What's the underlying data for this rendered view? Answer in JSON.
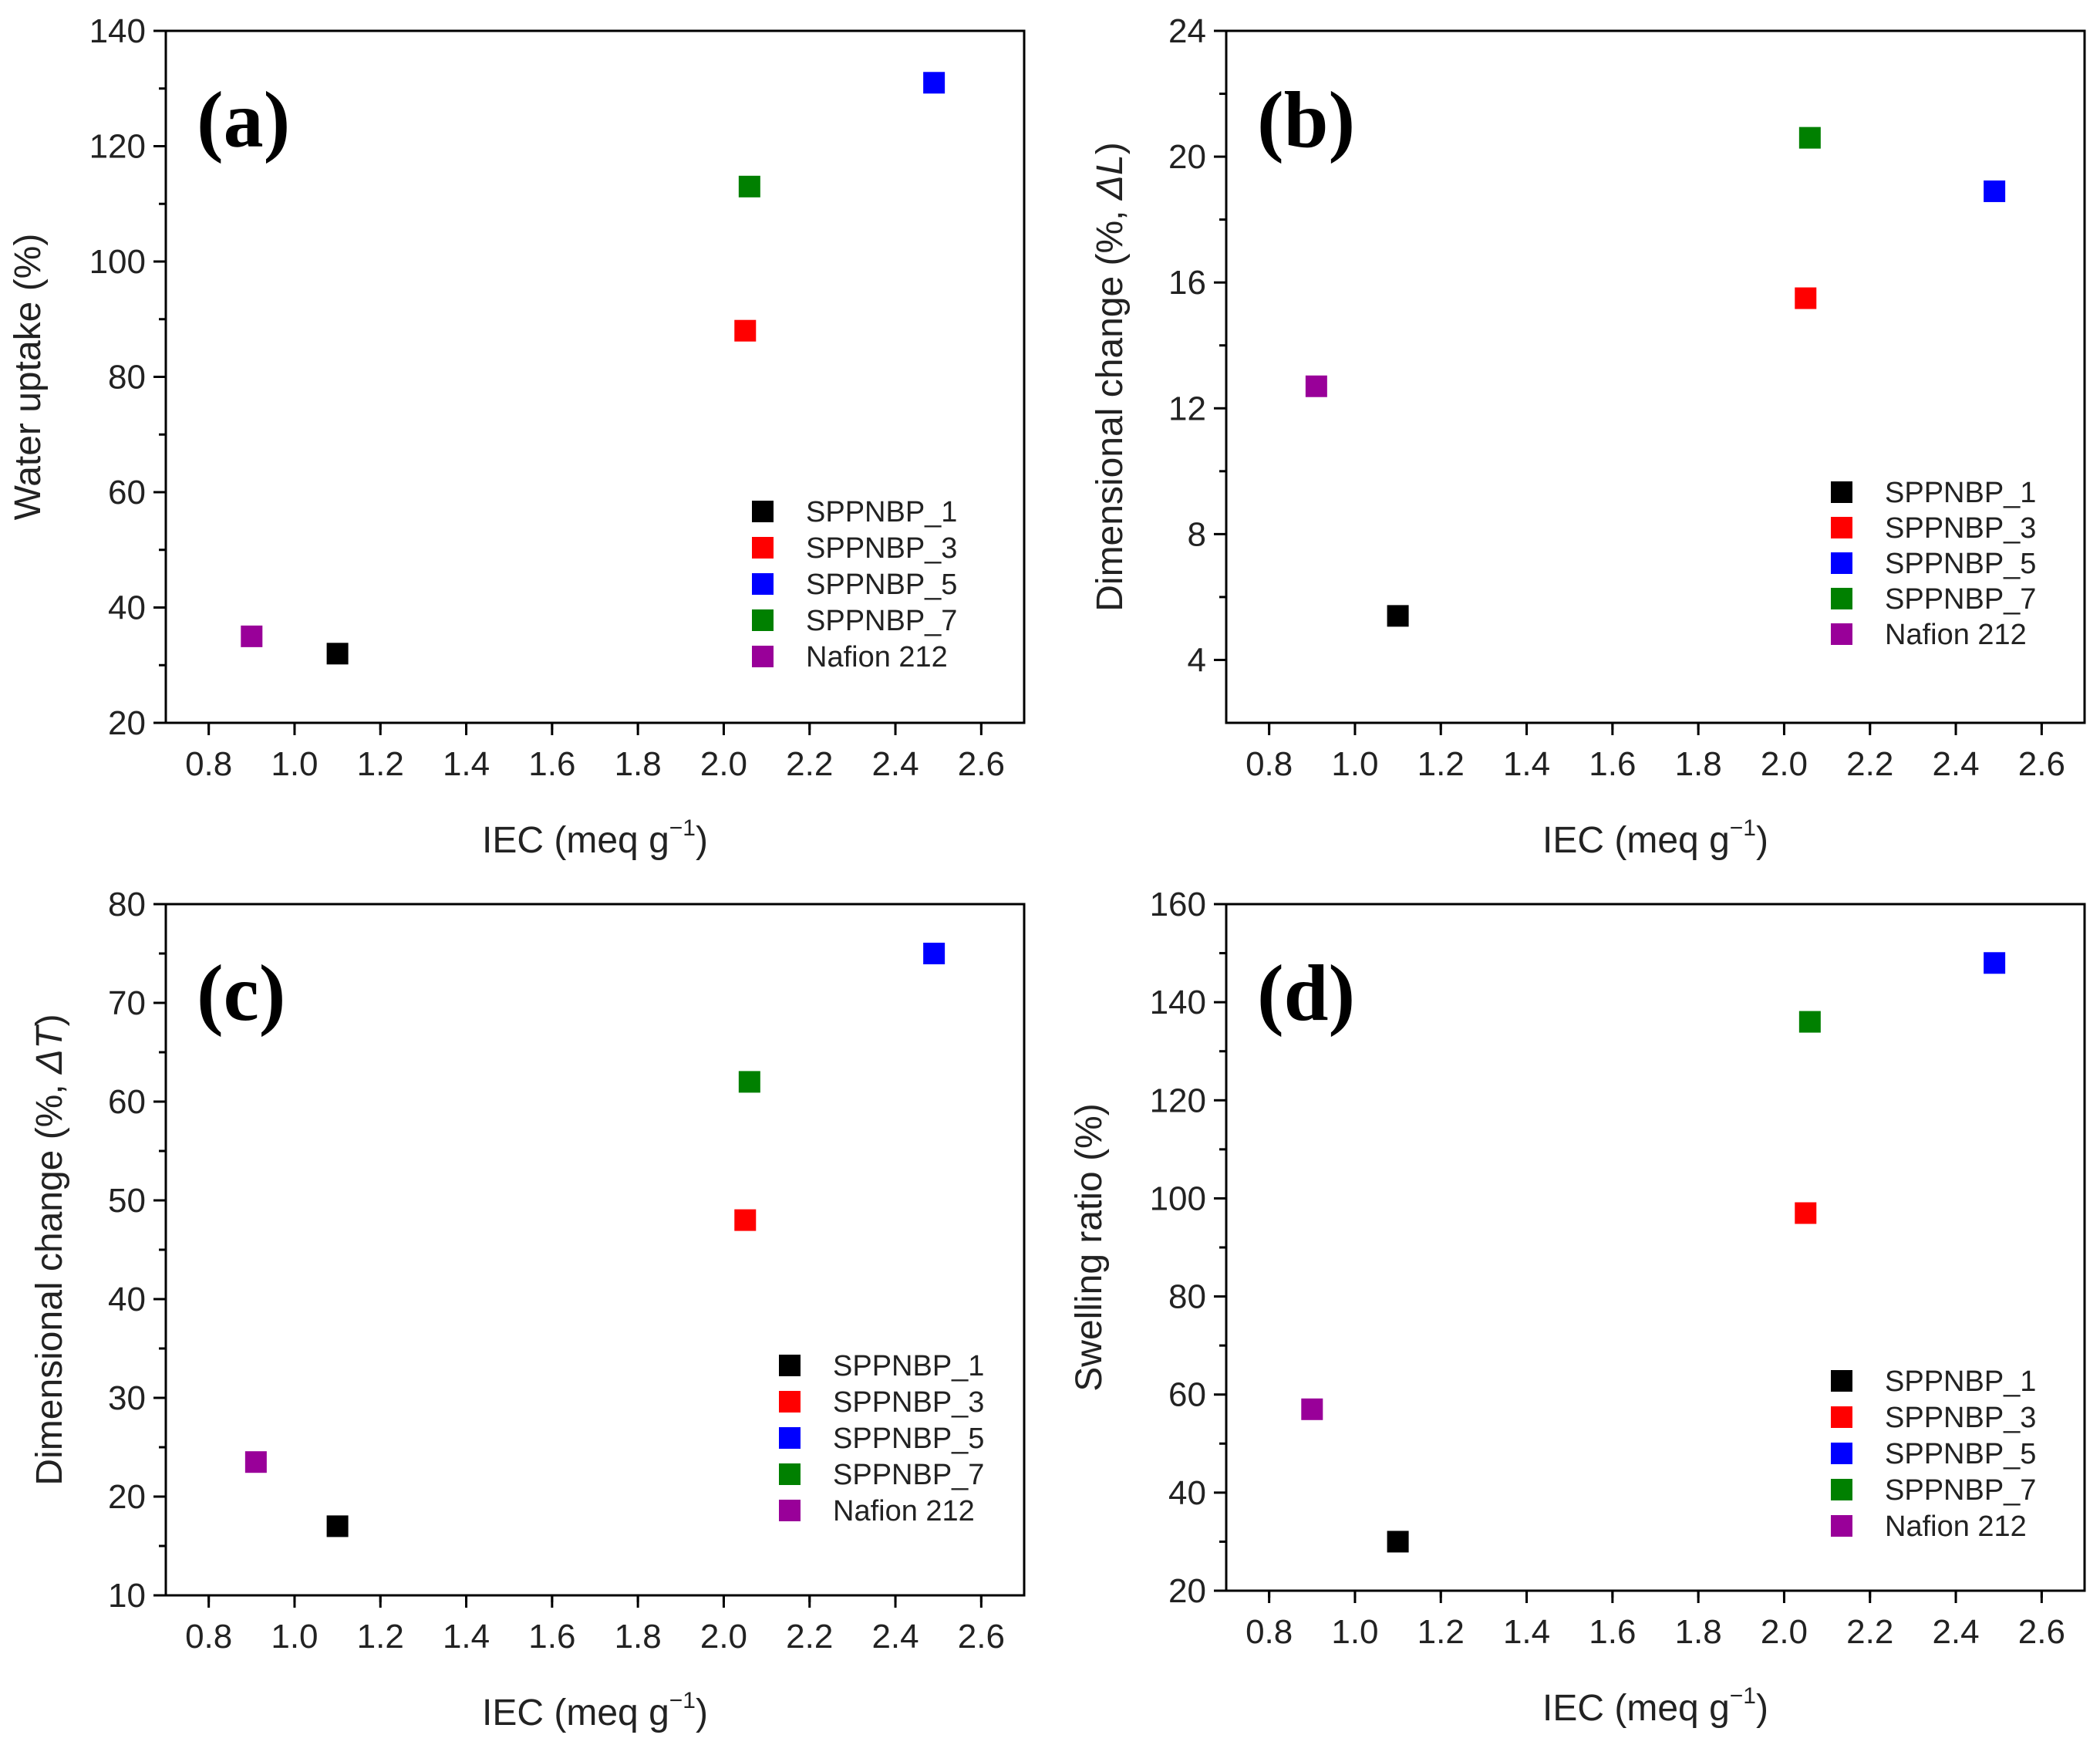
{
  "chart_data": [
    {
      "type": "scatter",
      "panel_label": "(a)",
      "xlabel": "IEC (meq g",
      "xlabel_sup": "−1",
      "xlabel_close": ")",
      "ylabel": "Water uptake (%)",
      "xlim": [
        0.7,
        2.7
      ],
      "ylim": [
        20,
        140
      ],
      "xticks": [
        "0.8",
        "1.0",
        "1.2",
        "1.4",
        "1.6",
        "1.8",
        "2.0",
        "2.2",
        "2.4",
        "2.6"
      ],
      "yticks": [
        "20",
        "40",
        "60",
        "80",
        "100",
        "120",
        "140"
      ],
      "legend_position": "bottom-right",
      "series": [
        {
          "name": "SPPNBP_1",
          "color": "#000000",
          "x": 1.1,
          "y": 32
        },
        {
          "name": "SPPNBP_3",
          "color": "#ff0000",
          "x": 2.05,
          "y": 88
        },
        {
          "name": "SPPNBP_5",
          "color": "#0000ff",
          "x": 2.49,
          "y": 131
        },
        {
          "name": "SPPNBP_7",
          "color": "#008000",
          "x": 2.06,
          "y": 113
        },
        {
          "name": "Nafion 212",
          "color": "#990099",
          "x": 0.9,
          "y": 35
        }
      ]
    },
    {
      "type": "scatter",
      "panel_label": "(b)",
      "xlabel": "IEC (meq g",
      "xlabel_sup": "−1",
      "xlabel_close": ")",
      "ylabel": "Dimensional change (%, ",
      "ylabel_italic": "ΔL",
      "ylabel_close": ")",
      "xlim": [
        0.7,
        2.7
      ],
      "ylim": [
        2,
        24
      ],
      "xticks": [
        "0.8",
        "1.0",
        "1.2",
        "1.4",
        "1.6",
        "1.8",
        "2.0",
        "2.2",
        "2.4",
        "2.6"
      ],
      "yticks": [
        "4",
        "8",
        "12",
        "16",
        "20",
        "24"
      ],
      "legend_position": "bottom-right",
      "series": [
        {
          "name": "SPPNBP_1",
          "color": "#000000",
          "x": 1.1,
          "y": 5.4
        },
        {
          "name": "SPPNBP_3",
          "color": "#ff0000",
          "x": 2.05,
          "y": 15.5
        },
        {
          "name": "SPPNBP_5",
          "color": "#0000ff",
          "x": 2.49,
          "y": 18.9
        },
        {
          "name": "SPPNBP_7",
          "color": "#008000",
          "x": 2.06,
          "y": 20.6
        },
        {
          "name": "Nafion 212",
          "color": "#990099",
          "x": 0.91,
          "y": 12.7
        }
      ]
    },
    {
      "type": "scatter",
      "panel_label": "(c)",
      "xlabel": "IEC (meq g",
      "xlabel_sup": "−1",
      "xlabel_close": ")",
      "ylabel": "Dimensional change (%, ",
      "ylabel_italic": "ΔT",
      "ylabel_close": ")",
      "xlim": [
        0.7,
        2.7
      ],
      "ylim": [
        10,
        80
      ],
      "xticks": [
        "0.8",
        "1.0",
        "1.2",
        "1.4",
        "1.6",
        "1.8",
        "2.0",
        "2.2",
        "2.4",
        "2.6"
      ],
      "yticks": [
        "10",
        "20",
        "30",
        "40",
        "50",
        "60",
        "70",
        "80"
      ],
      "legend_position": "bottom-right",
      "series": [
        {
          "name": "SPPNBP_1",
          "color": "#000000",
          "x": 1.1,
          "y": 17
        },
        {
          "name": "SPPNBP_3",
          "color": "#ff0000",
          "x": 2.05,
          "y": 48
        },
        {
          "name": "SPPNBP_5",
          "color": "#0000ff",
          "x": 2.49,
          "y": 75
        },
        {
          "name": "SPPNBP_7",
          "color": "#008000",
          "x": 2.06,
          "y": 62
        },
        {
          "name": "Nafion 212",
          "color": "#990099",
          "x": 0.91,
          "y": 23.5
        }
      ]
    },
    {
      "type": "scatter",
      "panel_label": "(d)",
      "xlabel": "IEC (meq g",
      "xlabel_sup": "−1",
      "xlabel_close": ")",
      "ylabel": "Swelling ratio (%)",
      "xlim": [
        0.7,
        2.7
      ],
      "ylim": [
        20,
        160
      ],
      "xticks": [
        "0.8",
        "1.0",
        "1.2",
        "1.4",
        "1.6",
        "1.8",
        "2.0",
        "2.2",
        "2.4",
        "2.6"
      ],
      "yticks": [
        "20",
        "40",
        "60",
        "80",
        "100",
        "120",
        "140",
        "160"
      ],
      "legend_position": "bottom-right",
      "series": [
        {
          "name": "SPPNBP_1",
          "color": "#000000",
          "x": 1.1,
          "y": 30
        },
        {
          "name": "SPPNBP_3",
          "color": "#ff0000",
          "x": 2.05,
          "y": 97
        },
        {
          "name": "SPPNBP_5",
          "color": "#0000ff",
          "x": 2.49,
          "y": 148
        },
        {
          "name": "SPPNBP_7",
          "color": "#008000",
          "x": 2.06,
          "y": 136
        },
        {
          "name": "Nafion 212",
          "color": "#990099",
          "x": 0.9,
          "y": 57
        }
      ]
    }
  ]
}
